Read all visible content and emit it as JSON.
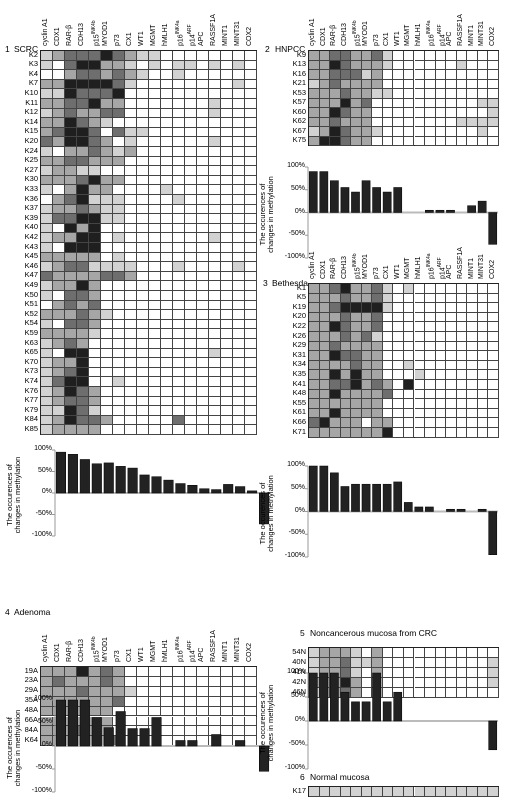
{
  "genes": [
    "cyclin A1",
    "CDX1",
    "RAR-β",
    "CDH13",
    "p15INK4b",
    "MYOD1",
    "p73",
    "CX1",
    "WT1",
    "MGMT",
    "hMLH1",
    "p16INK4a",
    "p14ARF",
    "APC",
    "RASSF1A",
    "MINT1",
    "MINT31",
    "COX2"
  ],
  "gene_labels": [
    {
      "base": "cyclin A1",
      "sup": ""
    },
    {
      "base": "CDX1",
      "sup": ""
    },
    {
      "base": "RAR-β",
      "sup": ""
    },
    {
      "base": "CDH13",
      "sup": ""
    },
    {
      "base": "p15",
      "sup": "INK4b"
    },
    {
      "base": "MYOD1",
      "sup": ""
    },
    {
      "base": "p73",
      "sup": ""
    },
    {
      "base": "CX1",
      "sup": ""
    },
    {
      "base": "WT1",
      "sup": ""
    },
    {
      "base": "MGMT",
      "sup": ""
    },
    {
      "base": "hMLH1",
      "sup": ""
    },
    {
      "base": "p16",
      "sup": "INK4a"
    },
    {
      "base": "p14",
      "sup": "ARF"
    },
    {
      "base": "APC",
      "sup": ""
    },
    {
      "base": "RASSF1A",
      "sup": ""
    },
    {
      "base": "MINT1",
      "sup": ""
    },
    {
      "base": "MINT31",
      "sup": ""
    },
    {
      "base": "COX2",
      "sup": ""
    }
  ],
  "y_axis_title": [
    "The occurences of",
    "changes in methylation"
  ],
  "y_ticks": [
    "100%",
    "50%",
    "0%",
    "-50%",
    "-100%"
  ],
  "colors": {
    "black": "#1f1f1f",
    "dark": "#6e6e6e",
    "mid": "#a6a6a6",
    "light": "#d2d2d2",
    "white": "#ffffff",
    "bar": "#222222"
  },
  "panels": [
    {
      "number": "1",
      "title": "SCRC",
      "rows": [
        "K2",
        "K3",
        "K4",
        "K7",
        "K10",
        "K11",
        "K12",
        "K14",
        "K15",
        "K20",
        "K24",
        "K25",
        "K27",
        "K30",
        "K33",
        "K36",
        "K37",
        "K39",
        "K40",
        "K42",
        "K43",
        "K45",
        "K46",
        "K47",
        "K49",
        "K50",
        "K51",
        "K52",
        "K54",
        "K59",
        "K63",
        "K65",
        "K70",
        "K73",
        "K74",
        "K76",
        "K77",
        "K79",
        "K84",
        "K85"
      ],
      "cells": [
        "123334321100000000",
        "103442210101101010",
        "002332321001000000",
        "224444310000000010",
        "114333400000000000",
        "223342200000001000",
        "123223300000001000",
        "224321000000000000",
        "234430311000000000",
        "324432010000001000",
        "102232120000000000",
        "223322200000000000",
        "122110000000000000",
        "222342200000000000",
        "102422000010000000",
        "023411100001000000",
        "122321100000000000",
        "133441100000000000",
        "104240000000000000",
        "122440100000001000",
        "104440000000000000",
        "222220100000000000",
        "123311110001000010",
        "322223320000000000",
        "122420000000000000",
        "103320000000000000",
        "023230000000000000",
        "222321000000000000",
        "103320000000000000",
        "222210000000000000",
        "123200000000000000",
        "104400000000001000",
        "122400000000000000",
        "123400000000000000",
        "134400100000000000",
        "124320000000000000",
        "123320000000000000",
        "114310000000000000",
        "124332000003000000",
        "122220000000000000"
      ],
      "chart_data": {
        "type": "bar",
        "categories": [
          "cyclin A1",
          "CDX1",
          "RAR-β",
          "CDH13",
          "p15INK4b",
          "MYOD1",
          "p73",
          "CX1",
          "WT1",
          "MGMT",
          "hMLH1",
          "p16INK4a",
          "p14ARF",
          "APC",
          "RASSF1A",
          "MINT1",
          "MINT31",
          "COX2"
        ],
        "values": [
          95,
          90,
          78,
          68,
          70,
          62,
          58,
          42,
          38,
          30,
          22,
          18,
          10,
          8,
          20,
          15,
          5,
          -72
        ],
        "ylim": [
          -100,
          100
        ]
      }
    },
    {
      "number": "2",
      "title": "HNPCC",
      "rows": [
        "K9",
        "K13",
        "K16",
        "K21",
        "K53",
        "K57",
        "K60",
        "K62",
        "K67",
        "K75"
      ],
      "cells": [
        "223322310000000000",
        "224322210000001000",
        "223331200000000000",
        "123222200000000000",
        "222322110000000000",
        "222423000000000011",
        "224322000000000001",
        "223222000000001111",
        "124322100000000010",
        "244322000000000000"
      ],
      "chart_data": {
        "type": "bar",
        "categories": [
          "cyclin A1",
          "CDX1",
          "RAR-β",
          "CDH13",
          "p15INK4b",
          "MYOD1",
          "p73",
          "CX1",
          "WT1",
          "MGMT",
          "hMLH1",
          "p16INK4a",
          "p14ARF",
          "APC",
          "RASSF1A",
          "MINT1",
          "MINT31",
          "COX2"
        ],
        "values": [
          90,
          90,
          70,
          55,
          45,
          70,
          55,
          45,
          55,
          0,
          0,
          5,
          5,
          5,
          0,
          15,
          25,
          -70
        ],
        "ylim": [
          -100,
          100
        ]
      }
    },
    {
      "number": "3",
      "title": "Bethesda",
      "rows": [
        "K1",
        "K5",
        "K19",
        "K20",
        "K22",
        "K26",
        "K29",
        "K31",
        "K34",
        "K35",
        "K41",
        "K48",
        "K55",
        "K61",
        "K66",
        "K71"
      ],
      "cells": [
        "223422310100000000",
        "222322310000000000",
        "223444410000000000",
        "222322300000000000",
        "224322300000000000",
        "222323100000000000",
        "223222200000000000",
        "224332200000000000",
        "222232200100000000",
        "224242200010000000",
        "223342320400000000",
        "224222230000000000",
        "222222200000000000",
        "224222200000000000",
        "342220220000000000",
        "222222240000000000"
      ],
      "chart_data": {
        "type": "bar",
        "categories": [
          "cyclin A1",
          "CDX1",
          "RAR-β",
          "CDH13",
          "p15INK4b",
          "MYOD1",
          "p73",
          "CX1",
          "WT1",
          "MGMT",
          "hMLH1",
          "p16INK4a",
          "p14ARF",
          "APC",
          "RASSF1A",
          "MINT1",
          "MINT31",
          "COX2"
        ],
        "values": [
          100,
          100,
          85,
          55,
          60,
          60,
          60,
          60,
          65,
          20,
          10,
          10,
          0,
          5,
          5,
          0,
          5,
          -95
        ],
        "ylim": [
          -100,
          100
        ]
      }
    },
    {
      "number": "4",
      "title": "Adenoma",
      "rows": [
        "19A",
        "23A",
        "29A",
        "35A",
        "48A",
        "66A",
        "84A",
        "K64"
      ],
      "cells": [
        "222423200000000000",
        "232223200000000000",
        "222322210000000000",
        "222222300000000000",
        "222222000000000000",
        "222222000000000000",
        "222322000000000000",
        "222222300000000000"
      ],
      "chart_data": {
        "type": "bar",
        "categories": [
          "cyclin A1",
          "CDX1",
          "RAR-β",
          "CDH13",
          "p15INK4b",
          "MYOD1",
          "p73",
          "CX1",
          "WT1",
          "MGMT",
          "hMLH1",
          "p16INK4a",
          "p14ARF",
          "APC",
          "RASSF1A",
          "MINT1",
          "MINT31",
          "COX2"
        ],
        "values": [
          100,
          100,
          100,
          62,
          40,
          75,
          38,
          38,
          62,
          0,
          12,
          12,
          0,
          25,
          0,
          12,
          0,
          -55
        ],
        "ylim": [
          -100,
          100
        ]
      }
    },
    {
      "number": "5",
      "title": "Noncancerous mucosa from  CRC",
      "rows": [
        "54N",
        "40N",
        "41N",
        "42N",
        "46N"
      ],
      "cells": [
        "122210200000000000",
        "122311200000000001",
        "122310200000000001",
        "222420200000000001",
        "122320200000000000"
      ],
      "chart_data": {
        "type": "bar",
        "categories": [
          "cyclin A1",
          "CDX1",
          "RAR-β",
          "CDH13",
          "p15INK4b",
          "MYOD1",
          "p73",
          "CX1",
          "WT1",
          "MGMT",
          "hMLH1",
          "p16INK4a",
          "p14ARF",
          "APC",
          "RASSF1A",
          "MINT1",
          "MINT31",
          "COX2"
        ],
        "values": [
          100,
          100,
          100,
          60,
          40,
          40,
          100,
          40,
          60,
          0,
          0,
          0,
          0,
          0,
          0,
          0,
          0,
          -60
        ],
        "ylim": [
          -100,
          100
        ]
      }
    },
    {
      "number": "6",
      "title": "Normal mucosa",
      "rows": [
        "K17"
      ],
      "cells": [
        "111111111111111111"
      ]
    }
  ]
}
